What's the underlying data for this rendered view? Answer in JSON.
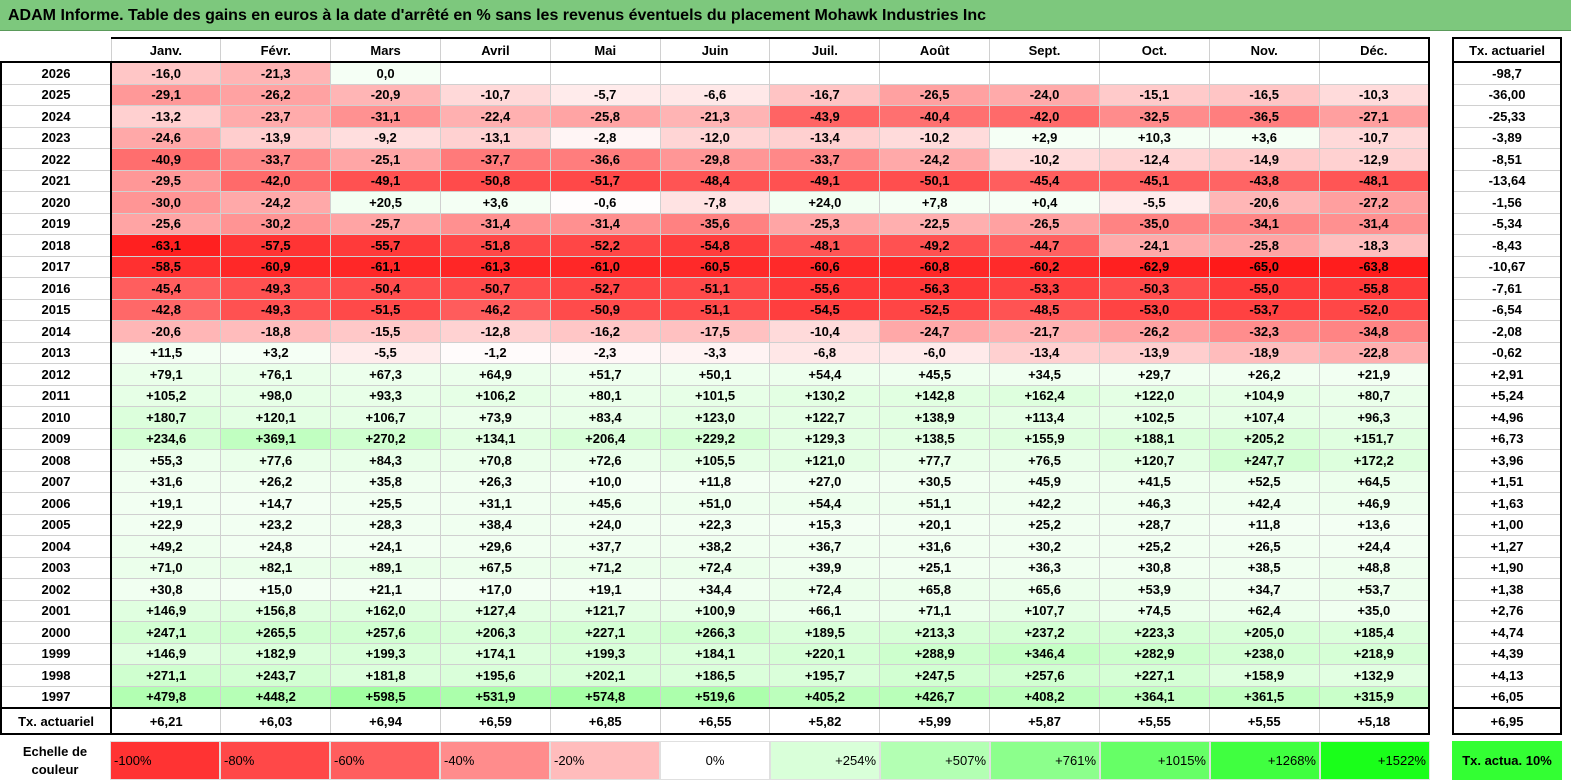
{
  "title": "ADAM Informe. Table des gains en euros à la date d'arrêté en % sans les revenus éventuels du placement Mohawk Industries Inc",
  "months": [
    "Janv.",
    "Févr.",
    "Mars",
    "Avril",
    "Mai",
    "Juin",
    "Juil.",
    "Août",
    "Sept.",
    "Oct.",
    "Nov.",
    "Déc."
  ],
  "rate_header": "Tx. actuariel",
  "rows": [
    {
      "year": "2026",
      "values": [
        "-16,0",
        "-21,3",
        "0,0",
        "",
        "",
        "",
        "",
        "",
        "",
        "",
        "",
        ""
      ],
      "rate": "-98,7"
    },
    {
      "year": "2025",
      "values": [
        "-29,1",
        "-26,2",
        "-20,9",
        "-10,7",
        "-5,7",
        "-6,6",
        "-16,7",
        "-26,5",
        "-24,0",
        "-15,1",
        "-16,5",
        "-10,3"
      ],
      "rate": "-36,00"
    },
    {
      "year": "2024",
      "values": [
        "-13,2",
        "-23,7",
        "-31,1",
        "-22,4",
        "-25,8",
        "-21,3",
        "-43,9",
        "-40,4",
        "-42,0",
        "-32,5",
        "-36,5",
        "-27,1"
      ],
      "rate": "-25,33"
    },
    {
      "year": "2023",
      "values": [
        "-24,6",
        "-13,9",
        "-9,2",
        "-13,1",
        "-2,8",
        "-12,0",
        "-13,4",
        "-10,2",
        "+2,9",
        "+10,3",
        "+3,6",
        "-10,7"
      ],
      "rate": "-3,89"
    },
    {
      "year": "2022",
      "values": [
        "-40,9",
        "-33,7",
        "-25,1",
        "-37,7",
        "-36,6",
        "-29,8",
        "-33,7",
        "-24,2",
        "-10,2",
        "-12,4",
        "-14,9",
        "-12,9"
      ],
      "rate": "-8,51"
    },
    {
      "year": "2021",
      "values": [
        "-29,5",
        "-42,0",
        "-49,1",
        "-50,8",
        "-51,7",
        "-48,4",
        "-49,1",
        "-50,1",
        "-45,4",
        "-45,1",
        "-43,8",
        "-48,1"
      ],
      "rate": "-13,64"
    },
    {
      "year": "2020",
      "values": [
        "-30,0",
        "-24,2",
        "+20,5",
        "+3,6",
        "-0,6",
        "-7,8",
        "+24,0",
        "+7,8",
        "+0,4",
        "-5,5",
        "-20,6",
        "-27,2"
      ],
      "rate": "-1,56"
    },
    {
      "year": "2019",
      "values": [
        "-25,6",
        "-30,2",
        "-25,7",
        "-31,4",
        "-31,4",
        "-35,6",
        "-25,3",
        "-22,5",
        "-26,5",
        "-35,0",
        "-34,1",
        "-31,4"
      ],
      "rate": "-5,34"
    },
    {
      "year": "2018",
      "values": [
        "-63,1",
        "-57,5",
        "-55,7",
        "-51,8",
        "-52,2",
        "-54,8",
        "-48,1",
        "-49,2",
        "-44,7",
        "-24,1",
        "-25,8",
        "-18,3"
      ],
      "rate": "-8,43"
    },
    {
      "year": "2017",
      "values": [
        "-58,5",
        "-60,9",
        "-61,1",
        "-61,3",
        "-61,0",
        "-60,5",
        "-60,6",
        "-60,8",
        "-60,2",
        "-62,9",
        "-65,0",
        "-63,8"
      ],
      "rate": "-10,67"
    },
    {
      "year": "2016",
      "values": [
        "-45,4",
        "-49,3",
        "-50,4",
        "-50,7",
        "-52,7",
        "-51,1",
        "-55,6",
        "-56,3",
        "-53,3",
        "-50,3",
        "-55,0",
        "-55,8"
      ],
      "rate": "-7,61"
    },
    {
      "year": "2015",
      "values": [
        "-42,8",
        "-49,3",
        "-51,5",
        "-46,2",
        "-50,9",
        "-51,1",
        "-54,5",
        "-52,5",
        "-48,5",
        "-53,0",
        "-53,7",
        "-52,0"
      ],
      "rate": "-6,54"
    },
    {
      "year": "2014",
      "values": [
        "-20,6",
        "-18,8",
        "-15,5",
        "-12,8",
        "-16,2",
        "-17,5",
        "-10,4",
        "-24,7",
        "-21,7",
        "-26,2",
        "-32,3",
        "-34,8"
      ],
      "rate": "-2,08"
    },
    {
      "year": "2013",
      "values": [
        "+11,5",
        "+3,2",
        "-5,5",
        "-1,2",
        "-2,3",
        "-3,3",
        "-6,8",
        "-6,0",
        "-13,4",
        "-13,9",
        "-18,9",
        "-22,8"
      ],
      "rate": "-0,62"
    },
    {
      "year": "2012",
      "values": [
        "+79,1",
        "+76,1",
        "+67,3",
        "+64,9",
        "+51,7",
        "+50,1",
        "+54,4",
        "+45,5",
        "+34,5",
        "+29,7",
        "+26,2",
        "+21,9"
      ],
      "rate": "+2,91"
    },
    {
      "year": "2011",
      "values": [
        "+105,2",
        "+98,0",
        "+93,3",
        "+106,2",
        "+80,1",
        "+101,5",
        "+130,2",
        "+142,8",
        "+162,4",
        "+122,0",
        "+104,9",
        "+80,7"
      ],
      "rate": "+5,24"
    },
    {
      "year": "2010",
      "values": [
        "+180,7",
        "+120,1",
        "+106,7",
        "+73,9",
        "+83,4",
        "+123,0",
        "+122,7",
        "+138,9",
        "+113,4",
        "+102,5",
        "+107,4",
        "+96,3"
      ],
      "rate": "+4,96"
    },
    {
      "year": "2009",
      "values": [
        "+234,6",
        "+369,1",
        "+270,2",
        "+134,1",
        "+206,4",
        "+229,2",
        "+129,3",
        "+138,5",
        "+155,9",
        "+188,1",
        "+205,2",
        "+151,7"
      ],
      "rate": "+6,73"
    },
    {
      "year": "2008",
      "values": [
        "+55,3",
        "+77,6",
        "+84,3",
        "+70,8",
        "+72,6",
        "+105,5",
        "+121,0",
        "+77,7",
        "+76,5",
        "+120,7",
        "+247,7",
        "+172,2"
      ],
      "rate": "+3,96"
    },
    {
      "year": "2007",
      "values": [
        "+31,6",
        "+26,2",
        "+35,8",
        "+26,3",
        "+10,0",
        "+11,8",
        "+27,0",
        "+30,5",
        "+45,9",
        "+41,5",
        "+52,5",
        "+64,5"
      ],
      "rate": "+1,51"
    },
    {
      "year": "2006",
      "values": [
        "+19,1",
        "+14,7",
        "+25,5",
        "+31,1",
        "+45,6",
        "+51,0",
        "+54,4",
        "+51,1",
        "+42,2",
        "+46,3",
        "+42,4",
        "+46,9"
      ],
      "rate": "+1,63"
    },
    {
      "year": "2005",
      "values": [
        "+22,9",
        "+23,2",
        "+28,3",
        "+38,4",
        "+24,0",
        "+22,3",
        "+15,3",
        "+20,1",
        "+25,2",
        "+28,7",
        "+11,8",
        "+13,6"
      ],
      "rate": "+1,00"
    },
    {
      "year": "2004",
      "values": [
        "+49,2",
        "+24,8",
        "+24,1",
        "+29,6",
        "+37,7",
        "+38,2",
        "+36,7",
        "+31,6",
        "+30,2",
        "+25,2",
        "+26,5",
        "+24,4"
      ],
      "rate": "+1,27"
    },
    {
      "year": "2003",
      "values": [
        "+71,0",
        "+82,1",
        "+89,1",
        "+67,5",
        "+71,2",
        "+72,4",
        "+39,9",
        "+25,1",
        "+36,3",
        "+30,8",
        "+38,5",
        "+48,8"
      ],
      "rate": "+1,90"
    },
    {
      "year": "2002",
      "values": [
        "+30,8",
        "+15,0",
        "+21,1",
        "+17,0",
        "+19,1",
        "+34,4",
        "+72,4",
        "+65,8",
        "+65,6",
        "+53,9",
        "+34,7",
        "+53,7"
      ],
      "rate": "+1,38"
    },
    {
      "year": "2001",
      "values": [
        "+146,9",
        "+156,8",
        "+162,0",
        "+127,4",
        "+121,7",
        "+100,9",
        "+66,1",
        "+71,1",
        "+107,7",
        "+74,5",
        "+62,4",
        "+35,0"
      ],
      "rate": "+2,76"
    },
    {
      "year": "2000",
      "values": [
        "+247,1",
        "+265,5",
        "+257,6",
        "+206,3",
        "+227,1",
        "+266,3",
        "+189,5",
        "+213,3",
        "+237,2",
        "+223,3",
        "+205,0",
        "+185,4"
      ],
      "rate": "+4,74"
    },
    {
      "year": "1999",
      "values": [
        "+146,9",
        "+182,9",
        "+199,3",
        "+174,1",
        "+199,3",
        "+184,1",
        "+220,1",
        "+288,9",
        "+346,4",
        "+282,9",
        "+238,0",
        "+218,9"
      ],
      "rate": "+4,39"
    },
    {
      "year": "1998",
      "values": [
        "+271,1",
        "+243,7",
        "+181,8",
        "+195,6",
        "+202,1",
        "+186,5",
        "+195,7",
        "+247,5",
        "+257,6",
        "+227,1",
        "+158,9",
        "+132,9"
      ],
      "rate": "+4,13"
    },
    {
      "year": "1997",
      "values": [
        "+479,8",
        "+448,2",
        "+598,5",
        "+531,9",
        "+574,8",
        "+519,6",
        "+405,2",
        "+426,7",
        "+408,2",
        "+364,1",
        "+361,5",
        "+315,9"
      ],
      "rate": "+6,05"
    }
  ],
  "footer": {
    "label": "Tx. actuariel",
    "values": [
      "+6,21",
      "+6,03",
      "+6,94",
      "+6,59",
      "+6,85",
      "+6,55",
      "+5,82",
      "+5,99",
      "+5,87",
      "+5,55",
      "+5,55",
      "+5,18"
    ],
    "rate": "+6,95"
  },
  "legend": {
    "label": "Echelle de couleur",
    "swatches": [
      {
        "text": "-100%",
        "color": "#ff3333",
        "kind": "neg"
      },
      {
        "text": "-80%",
        "color": "#ff4848",
        "kind": "neg"
      },
      {
        "text": "-60%",
        "color": "#ff5e5e",
        "kind": "neg"
      },
      {
        "text": "-40%",
        "color": "#ff8c8c",
        "kind": "neg"
      },
      {
        "text": "-20%",
        "color": "#ffbcbc",
        "kind": "neg"
      },
      {
        "text": "0%",
        "color": "#ffffff",
        "kind": "zero"
      },
      {
        "text": "+254%",
        "color": "#d9ffd9",
        "kind": "pos"
      },
      {
        "text": "+507%",
        "color": "#b3ffb3",
        "kind": "pos"
      },
      {
        "text": "+761%",
        "color": "#8cff8c",
        "kind": "pos"
      },
      {
        "text": "+1015%",
        "color": "#66ff66",
        "kind": "pos"
      },
      {
        "text": "+1268%",
        "color": "#40ff40",
        "kind": "pos"
      },
      {
        "text": "+1522%",
        "color": "#1aff1a",
        "kind": "pos"
      }
    ],
    "rate_label": "Tx. actua. 10%",
    "rate_color": "#33ff33"
  }
}
